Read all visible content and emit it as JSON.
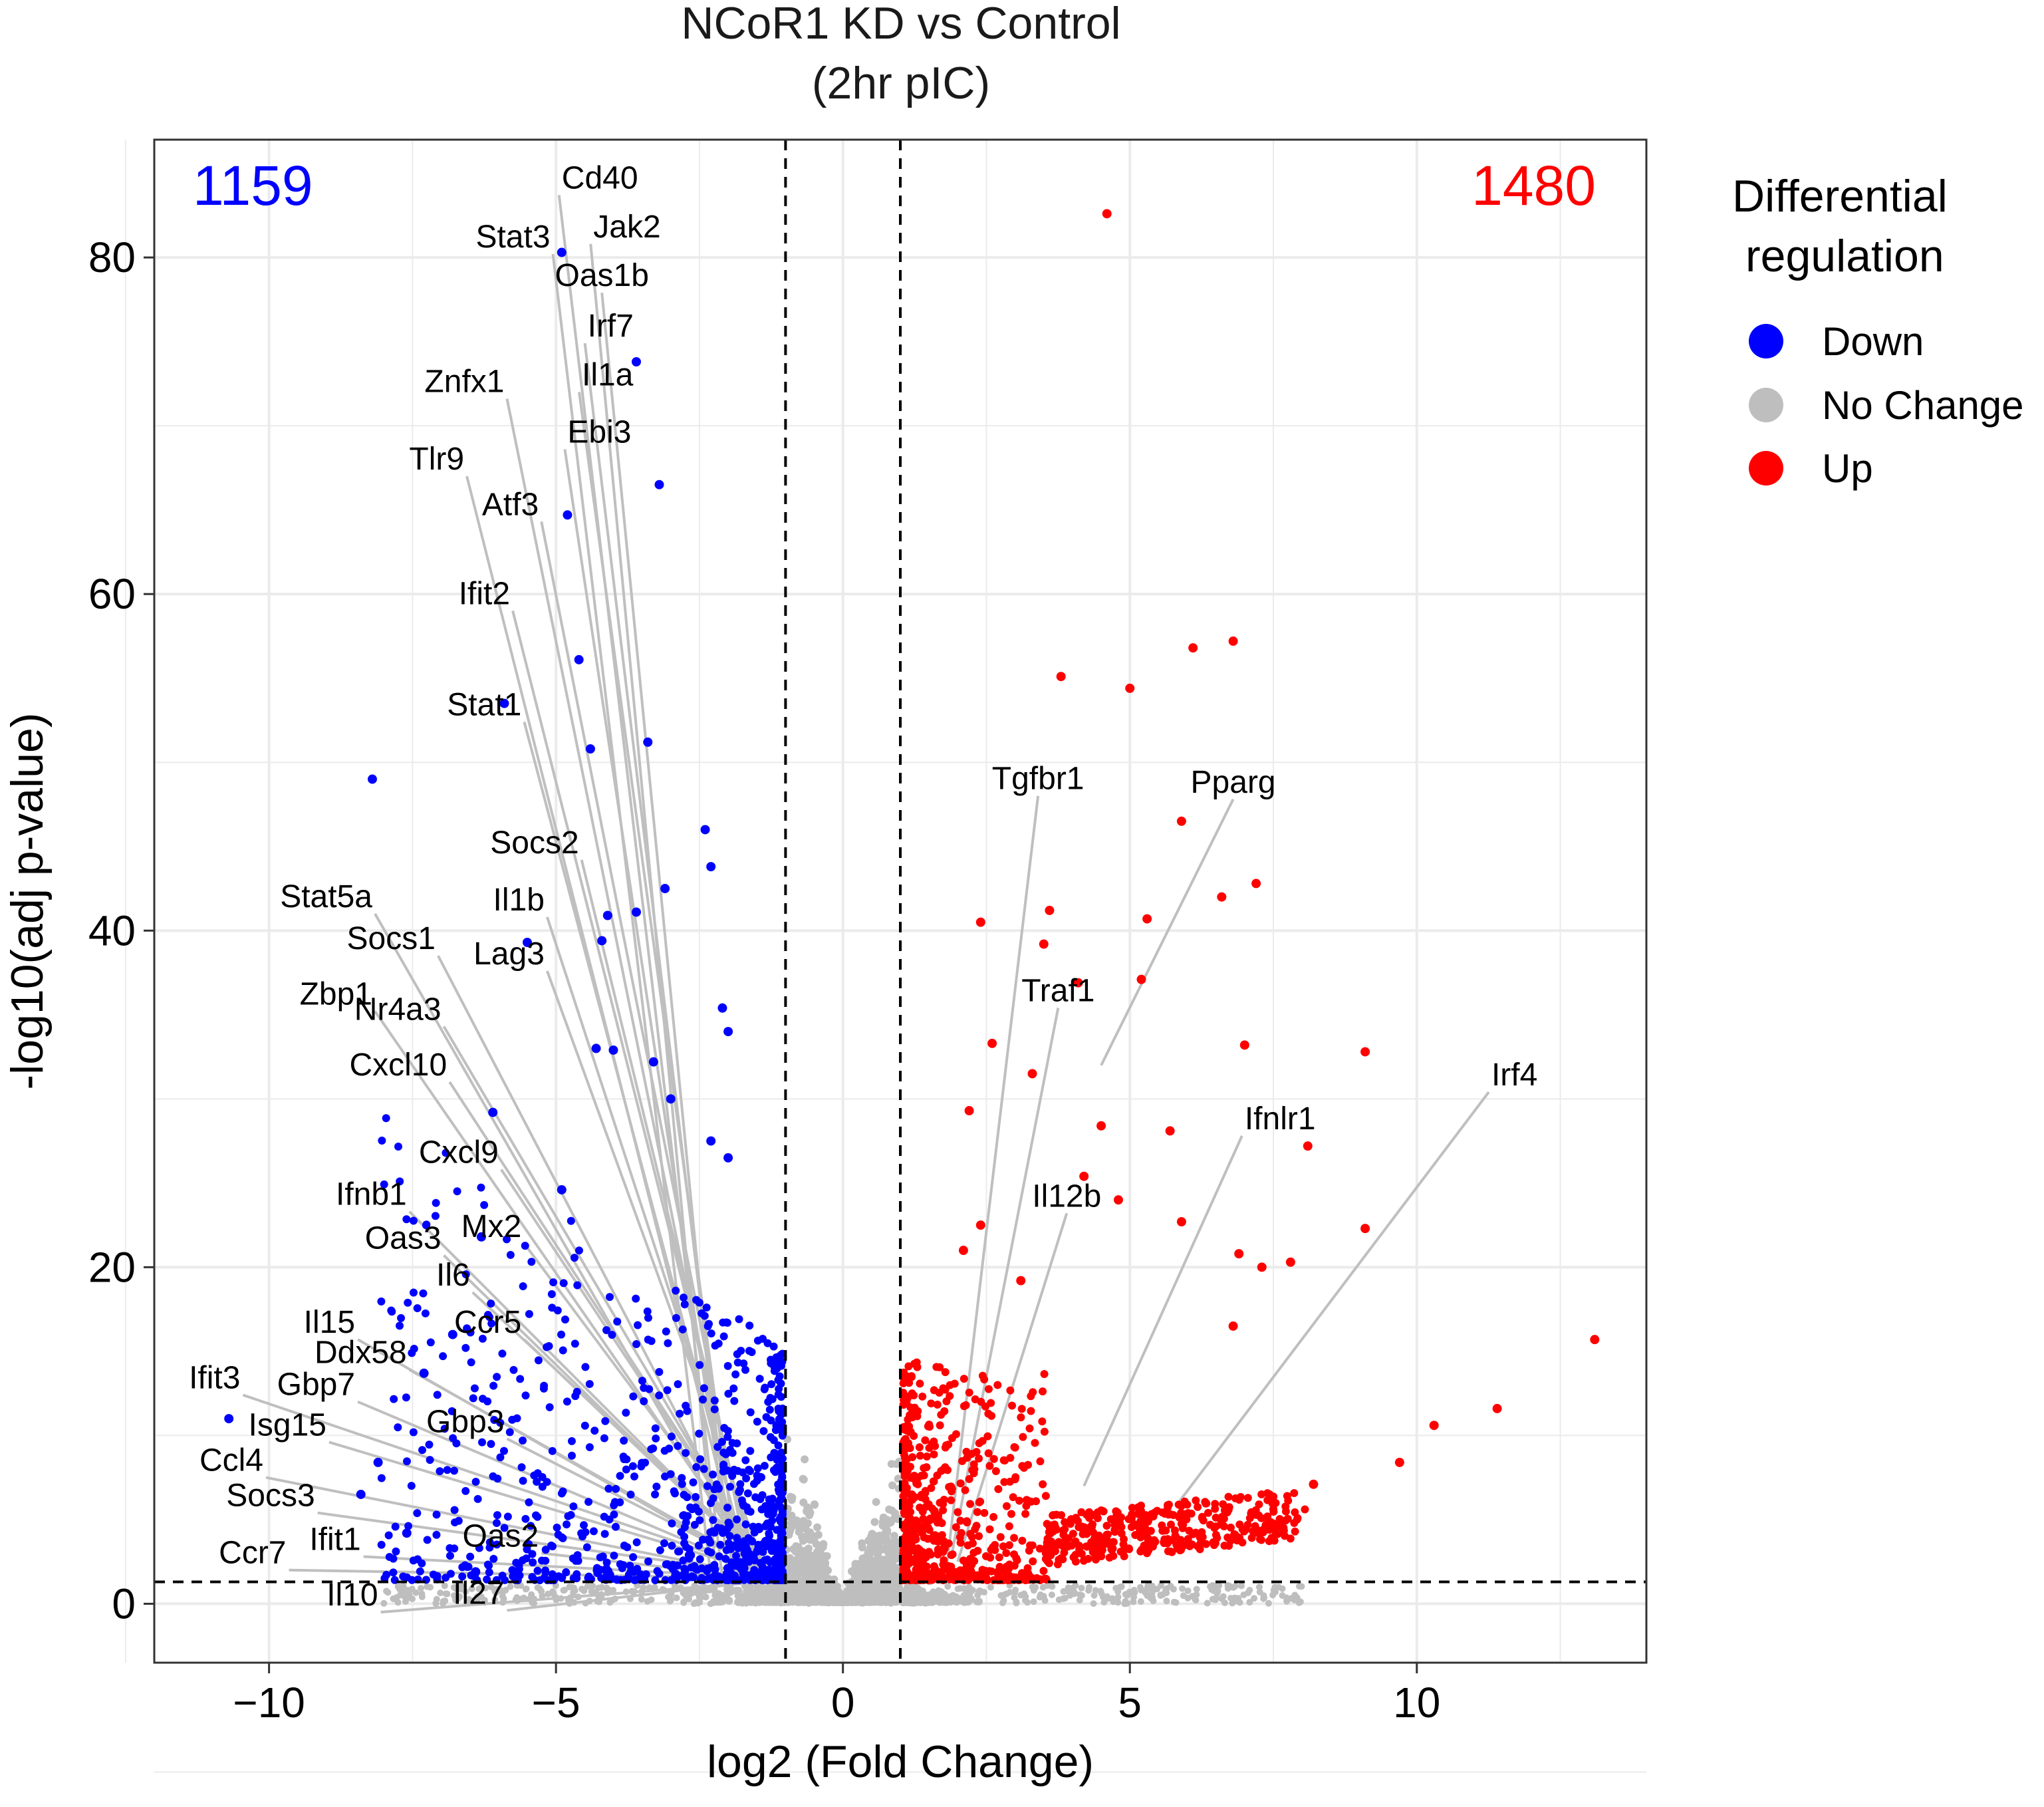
{
  "chart_data": {
    "type": "scatter",
    "title": "NCoR1 KD vs Control",
    "subtitle": "(2hr pIC)",
    "xlabel": "log2 (Fold Change)",
    "ylabel": "-log10(adj p-value)",
    "xlim": [
      -12,
      14
    ],
    "ylim": [
      -3.5,
      87
    ],
    "xticks": [
      -10,
      -5,
      0,
      5,
      10
    ],
    "xtick_labels": [
      "−10",
      "−5",
      "0",
      "5",
      "10"
    ],
    "yticks": [
      0,
      20,
      40,
      60,
      80
    ],
    "ytick_labels": [
      "0",
      "20",
      "40",
      "60",
      "80"
    ],
    "grid": true,
    "legend": {
      "title": [
        "Differential",
        "regulation"
      ],
      "placement": "right",
      "entries": [
        {
          "label": "Down",
          "color": "#0000ff"
        },
        {
          "label": "No Change",
          "color": "#bebebe"
        },
        {
          "label": "Up",
          "color": "#ff0000"
        }
      ]
    },
    "counts": {
      "down": {
        "text": "1159",
        "color": "#0000ff"
      },
      "up": {
        "text": "1480",
        "color": "#ff0000"
      }
    },
    "thresholds": {
      "log2fc": [
        -1,
        1
      ],
      "neg_log10_padj": 1.3
    },
    "series": [
      {
        "name": "Down",
        "color": "#0000ff",
        "x": [
          -4.9,
          -3.6,
          -3.2,
          -4.8,
          -5.9,
          -4.6,
          -3.4,
          -4.4,
          -8.2,
          -2.4,
          -2.3,
          -3.1,
          -4.1,
          -3.6,
          -4.2,
          -2.1,
          -2.0,
          -4.3,
          -4.0,
          -3.3,
          -6.1,
          -3.0,
          -5.5,
          -2.3,
          -2.0,
          -6.3,
          -4.9,
          -6.8,
          -7.3,
          -10.7,
          -8.1,
          -8.4,
          -7.6,
          -6.4
        ],
        "y": [
          80.3,
          73.8,
          66.5,
          64.7,
          53.5,
          56.1,
          51.2,
          50.8,
          49.0,
          46.0,
          43.8,
          42.5,
          40.9,
          41.1,
          39.4,
          35.4,
          34.0,
          33.0,
          32.9,
          32.2,
          29.2,
          30.0,
          39.3,
          27.5,
          26.5,
          21.8,
          24.6,
          16.0,
          13.7,
          11.0,
          8.4,
          6.5,
          4.2,
          1.9
        ]
      },
      {
        "name": "Up",
        "color": "#ff0000",
        "x": [
          4.6,
          6.8,
          6.1,
          3.8,
          5.0,
          5.9,
          2.4,
          3.6,
          5.3,
          6.6,
          7.2,
          3.5,
          4.1,
          5.2,
          7.0,
          9.1,
          2.2,
          4.5,
          5.7,
          8.1,
          2.4,
          6.9,
          7.3,
          7.8,
          4.2,
          9.1,
          3.1,
          2.1,
          10.3,
          11.4,
          13.1,
          9.7,
          8.2,
          2.6,
          3.3,
          5.9,
          4.8,
          6.8
        ],
        "y": [
          82.6,
          57.2,
          56.8,
          55.1,
          54.4,
          46.5,
          40.5,
          41.2,
          40.7,
          42.0,
          42.8,
          39.2,
          36.9,
          37.1,
          33.2,
          32.8,
          29.3,
          28.4,
          28.1,
          27.2,
          22.5,
          20.8,
          20.0,
          20.3,
          25.4,
          22.3,
          19.2,
          21.0,
          10.6,
          11.6,
          15.7,
          8.4,
          7.1,
          33.3,
          31.5,
          22.7,
          24.0,
          16.5
        ]
      }
    ],
    "gene_labels": [
      {
        "text": "Cd40"
      },
      {
        "text": "Jak2"
      },
      {
        "text": "Stat3"
      },
      {
        "text": "Oas1b"
      },
      {
        "text": "Irf7"
      },
      {
        "text": "Il1a"
      },
      {
        "text": "Znfx1"
      },
      {
        "text": "Ebi3"
      },
      {
        "text": "Tlr9"
      },
      {
        "text": "Atf3"
      },
      {
        "text": "Ifit2"
      },
      {
        "text": "Stat1"
      },
      {
        "text": "Socs2"
      },
      {
        "text": "Stat5a"
      },
      {
        "text": "Il1b"
      },
      {
        "text": "Socs1"
      },
      {
        "text": "Lag3"
      },
      {
        "text": "Zbp1"
      },
      {
        "text": "Nr4a3"
      },
      {
        "text": "Cxcl10"
      },
      {
        "text": "Cxcl9"
      },
      {
        "text": "Ifnb1"
      },
      {
        "text": "Mx2"
      },
      {
        "text": "Oas3"
      },
      {
        "text": "Il6"
      },
      {
        "text": "Il15"
      },
      {
        "text": "Ccr5"
      },
      {
        "text": "Ddx58"
      },
      {
        "text": "Ifit3"
      },
      {
        "text": "Gbp7"
      },
      {
        "text": "Gbp3"
      },
      {
        "text": "Isg15"
      },
      {
        "text": "Ccl4"
      },
      {
        "text": "Socs3"
      },
      {
        "text": "Ifit1"
      },
      {
        "text": "Oas2"
      },
      {
        "text": "Ccr7"
      },
      {
        "text": "Il27"
      },
      {
        "text": "Il10"
      },
      {
        "text": "Tgfbr1"
      },
      {
        "text": "Pparg"
      },
      {
        "text": "Traf1"
      },
      {
        "text": "Irf4"
      },
      {
        "text": "Ifnlr1"
      },
      {
        "text": "Il12b"
      }
    ]
  }
}
